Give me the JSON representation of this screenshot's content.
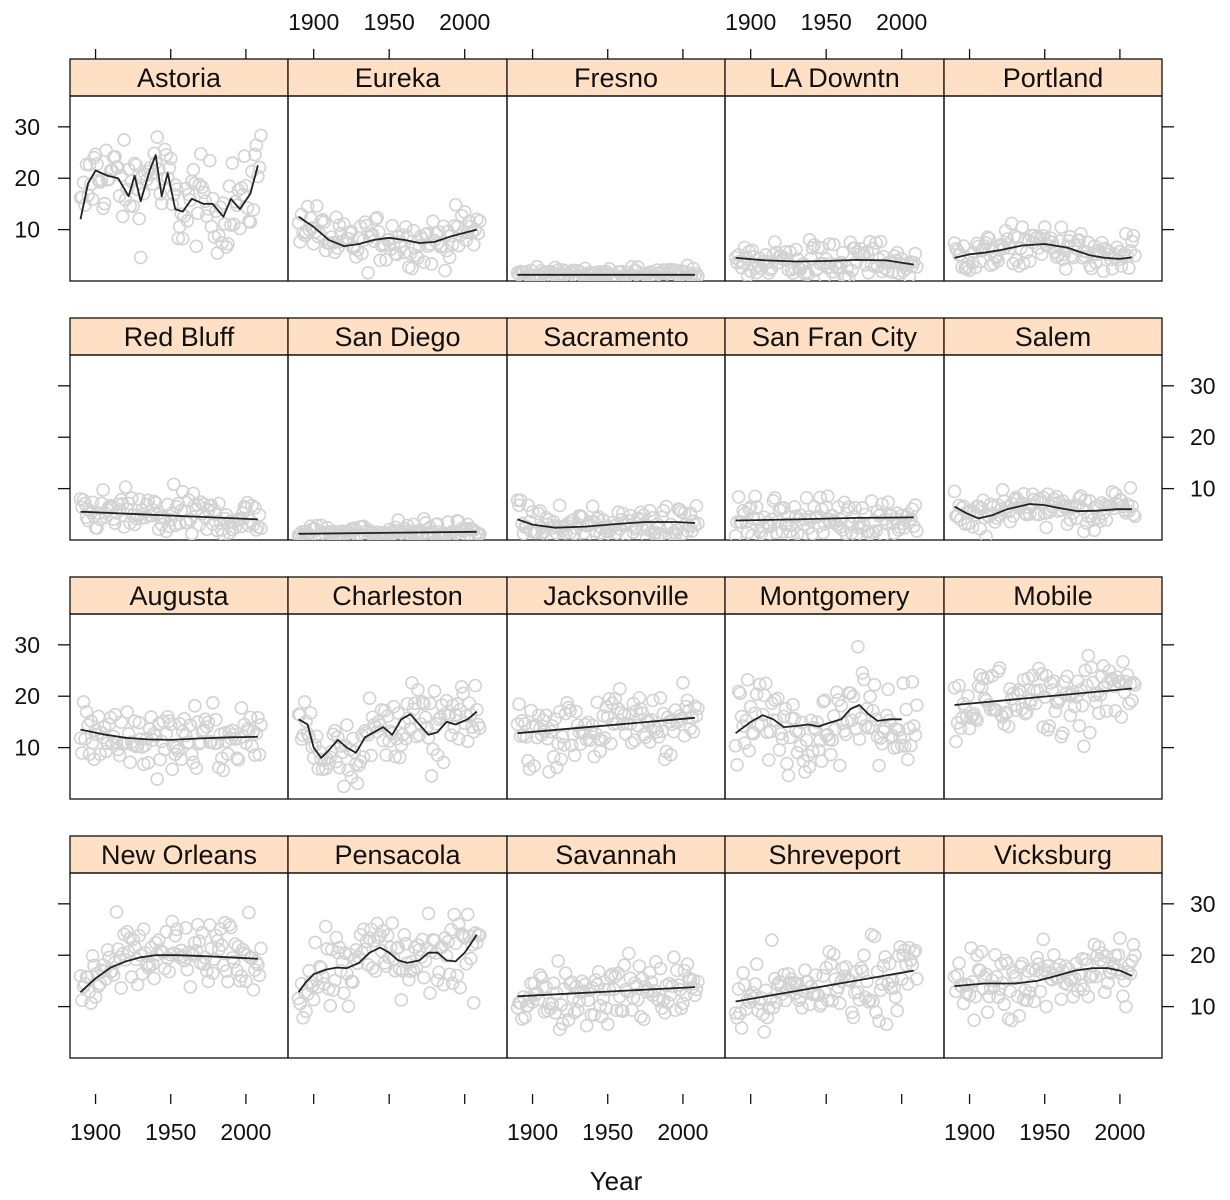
{
  "figure": {
    "xlabel": "Year",
    "ylabel": "",
    "x_tick_labels": [
      "1900",
      "1950",
      "2000"
    ],
    "y_tick_labels": [
      "10",
      "20",
      "30"
    ],
    "layout": "4 rows x 5 columns"
  },
  "chart_data": {
    "type": "scatter",
    "title": "",
    "xlabel": "Year",
    "ylabel": "",
    "xlim": [
      1883,
      2028
    ],
    "ylim": [
      0,
      36
    ],
    "xticks": [
      1900,
      1950,
      2000
    ],
    "yticks": [
      10,
      20,
      30
    ],
    "strip_color": "#ffe0c4",
    "point_color": "#d3d3d3",
    "line_color": "#222222",
    "grid": false,
    "panels": [
      {
        "name": "Astoria",
        "spread": 5.5,
        "smooth": [
          [
            1890,
            12
          ],
          [
            1895,
            19
          ],
          [
            1900,
            21.5
          ],
          [
            1908,
            20.5
          ],
          [
            1915,
            20
          ],
          [
            1922,
            16.5
          ],
          [
            1926,
            20.5
          ],
          [
            1930,
            15.5
          ],
          [
            1936,
            21.5
          ],
          [
            1940,
            24.5
          ],
          [
            1944,
            16.5
          ],
          [
            1948,
            21
          ],
          [
            1953,
            14
          ],
          [
            1958,
            13.5
          ],
          [
            1964,
            16
          ],
          [
            1972,
            15
          ],
          [
            1978,
            15
          ],
          [
            1985,
            12.5
          ],
          [
            1990,
            16
          ],
          [
            1996,
            14
          ],
          [
            2003,
            17
          ],
          [
            2008,
            22.5
          ]
        ]
      },
      {
        "name": "Eureka",
        "spread": 3.2,
        "smooth": [
          [
            1890,
            12.5
          ],
          [
            1900,
            10.5
          ],
          [
            1910,
            8
          ],
          [
            1920,
            6.8
          ],
          [
            1930,
            7.2
          ],
          [
            1940,
            8
          ],
          [
            1950,
            8.4
          ],
          [
            1960,
            8
          ],
          [
            1970,
            7.4
          ],
          [
            1980,
            7.6
          ],
          [
            1990,
            8.6
          ],
          [
            2000,
            9.4
          ],
          [
            2008,
            10
          ]
        ]
      },
      {
        "name": "Fresno",
        "spread": 1.0,
        "smooth": [
          [
            1890,
            1.2
          ],
          [
            2008,
            1.2
          ]
        ]
      },
      {
        "name": "LA Downtn",
        "spread": 2.8,
        "smooth": [
          [
            1890,
            4.5
          ],
          [
            1910,
            4
          ],
          [
            1930,
            3.8
          ],
          [
            1950,
            3.9
          ],
          [
            1970,
            4.1
          ],
          [
            1990,
            4
          ],
          [
            2008,
            3.2
          ]
        ]
      },
      {
        "name": "Portland",
        "spread": 2.6,
        "smooth": [
          [
            1890,
            4.5
          ],
          [
            1900,
            5.2
          ],
          [
            1910,
            5.5
          ],
          [
            1920,
            6
          ],
          [
            1935,
            6.9
          ],
          [
            1950,
            7.2
          ],
          [
            1965,
            6.5
          ],
          [
            1980,
            5
          ],
          [
            1990,
            4.5
          ],
          [
            2000,
            4.3
          ],
          [
            2008,
            4.6
          ]
        ]
      },
      {
        "name": "Red Bluff",
        "spread": 2.8,
        "smooth": [
          [
            1890,
            5.5
          ],
          [
            1930,
            5
          ],
          [
            1970,
            4.5
          ],
          [
            2008,
            4
          ]
        ]
      },
      {
        "name": "San Diego",
        "spread": 1.5,
        "smooth": [
          [
            1890,
            1.2
          ],
          [
            2008,
            1.6
          ]
        ]
      },
      {
        "name": "Sacramento",
        "spread": 2.3,
        "smooth": [
          [
            1890,
            4
          ],
          [
            1900,
            3
          ],
          [
            1915,
            2.4
          ],
          [
            1935,
            2.6
          ],
          [
            1955,
            3.1
          ],
          [
            1975,
            3.5
          ],
          [
            1995,
            3.5
          ],
          [
            2008,
            3.3
          ]
        ]
      },
      {
        "name": "San Fran City",
        "spread": 2.8,
        "smooth": [
          [
            1890,
            3.8
          ],
          [
            1930,
            4
          ],
          [
            1970,
            4.3
          ],
          [
            2008,
            4.4
          ]
        ]
      },
      {
        "name": "Salem",
        "spread": 2.6,
        "smooth": [
          [
            1890,
            6.5
          ],
          [
            1898,
            5.2
          ],
          [
            1906,
            4.2
          ],
          [
            1915,
            4.8
          ],
          [
            1925,
            6
          ],
          [
            1940,
            7
          ],
          [
            1950,
            6.8
          ],
          [
            1960,
            6.2
          ],
          [
            1972,
            5.6
          ],
          [
            1985,
            5.7
          ],
          [
            1998,
            6
          ],
          [
            2008,
            6
          ]
        ]
      },
      {
        "name": "Augusta",
        "spread": 4.0,
        "smooth": [
          [
            1890,
            13.5
          ],
          [
            1905,
            12.6
          ],
          [
            1920,
            11.9
          ],
          [
            1935,
            11.6
          ],
          [
            1950,
            11.5
          ],
          [
            1970,
            11.8
          ],
          [
            1990,
            12
          ],
          [
            2008,
            12.1
          ]
        ]
      },
      {
        "name": "Charleston",
        "spread": 4.5,
        "smooth": [
          [
            1890,
            15.5
          ],
          [
            1896,
            14.5
          ],
          [
            1900,
            10
          ],
          [
            1905,
            8
          ],
          [
            1910,
            9.5
          ],
          [
            1916,
            11.5
          ],
          [
            1922,
            10
          ],
          [
            1928,
            9
          ],
          [
            1934,
            12
          ],
          [
            1940,
            13
          ],
          [
            1946,
            14
          ],
          [
            1952,
            12.5
          ],
          [
            1958,
            15.5
          ],
          [
            1964,
            16.5
          ],
          [
            1970,
            14.5
          ],
          [
            1976,
            12.5
          ],
          [
            1982,
            13
          ],
          [
            1988,
            15
          ],
          [
            1994,
            14.5
          ],
          [
            2002,
            15.5
          ],
          [
            2008,
            17
          ]
        ]
      },
      {
        "name": "Jacksonville",
        "spread": 4.5,
        "smooth": [
          [
            1890,
            12.8
          ],
          [
            2008,
            15.8
          ]
        ]
      },
      {
        "name": "Montgomery",
        "spread": 5.2,
        "smooth": [
          [
            1890,
            12.8
          ],
          [
            1900,
            15
          ],
          [
            1908,
            16.3
          ],
          [
            1915,
            15.5
          ],
          [
            1922,
            14
          ],
          [
            1930,
            14.2
          ],
          [
            1938,
            14.5
          ],
          [
            1945,
            14.1
          ],
          [
            1952,
            14.8
          ],
          [
            1960,
            15.5
          ],
          [
            1966,
            17.5
          ],
          [
            1972,
            18.3
          ],
          [
            1978,
            16.5
          ],
          [
            1984,
            15.2
          ],
          [
            1992,
            15.5
          ],
          [
            2000,
            15.5
          ]
        ]
      },
      {
        "name": "Mobile",
        "spread": 4.8,
        "smooth": [
          [
            1890,
            18.3
          ],
          [
            2008,
            21.5
          ]
        ]
      },
      {
        "name": "New Orleans",
        "spread": 4.5,
        "smooth": [
          [
            1890,
            12.8
          ],
          [
            1900,
            15.5
          ],
          [
            1910,
            17.6
          ],
          [
            1920,
            18.8
          ],
          [
            1930,
            19.6
          ],
          [
            1940,
            20
          ],
          [
            1955,
            20
          ],
          [
            1975,
            19.8
          ],
          [
            1995,
            19.5
          ],
          [
            2008,
            19.3
          ]
        ]
      },
      {
        "name": "Pensacola",
        "spread": 5.2,
        "smooth": [
          [
            1890,
            12.8
          ],
          [
            1895,
            14.8
          ],
          [
            1900,
            16.3
          ],
          [
            1908,
            17.2
          ],
          [
            1915,
            17.6
          ],
          [
            1922,
            17.5
          ],
          [
            1930,
            18.5
          ],
          [
            1937,
            20.5
          ],
          [
            1944,
            21.5
          ],
          [
            1950,
            20.5
          ],
          [
            1956,
            19
          ],
          [
            1962,
            18.5
          ],
          [
            1970,
            19
          ],
          [
            1976,
            20.5
          ],
          [
            1982,
            20.5
          ],
          [
            1988,
            19
          ],
          [
            1994,
            18.8
          ],
          [
            2000,
            20.5
          ],
          [
            2008,
            24
          ]
        ]
      },
      {
        "name": "Savannah",
        "spread": 4.2,
        "smooth": [
          [
            1890,
            12
          ],
          [
            2008,
            13.8
          ]
        ]
      },
      {
        "name": "Shreveport",
        "spread": 5.0,
        "smooth": [
          [
            1890,
            11
          ],
          [
            2008,
            17
          ]
        ]
      },
      {
        "name": "Vicksburg",
        "spread": 4.5,
        "smooth": [
          [
            1890,
            14
          ],
          [
            1910,
            14.5
          ],
          [
            1930,
            14.5
          ],
          [
            1945,
            15
          ],
          [
            1958,
            16
          ],
          [
            1970,
            17
          ],
          [
            1982,
            17.5
          ],
          [
            1992,
            17.5
          ],
          [
            2000,
            17
          ],
          [
            2008,
            16
          ]
        ]
      }
    ]
  }
}
